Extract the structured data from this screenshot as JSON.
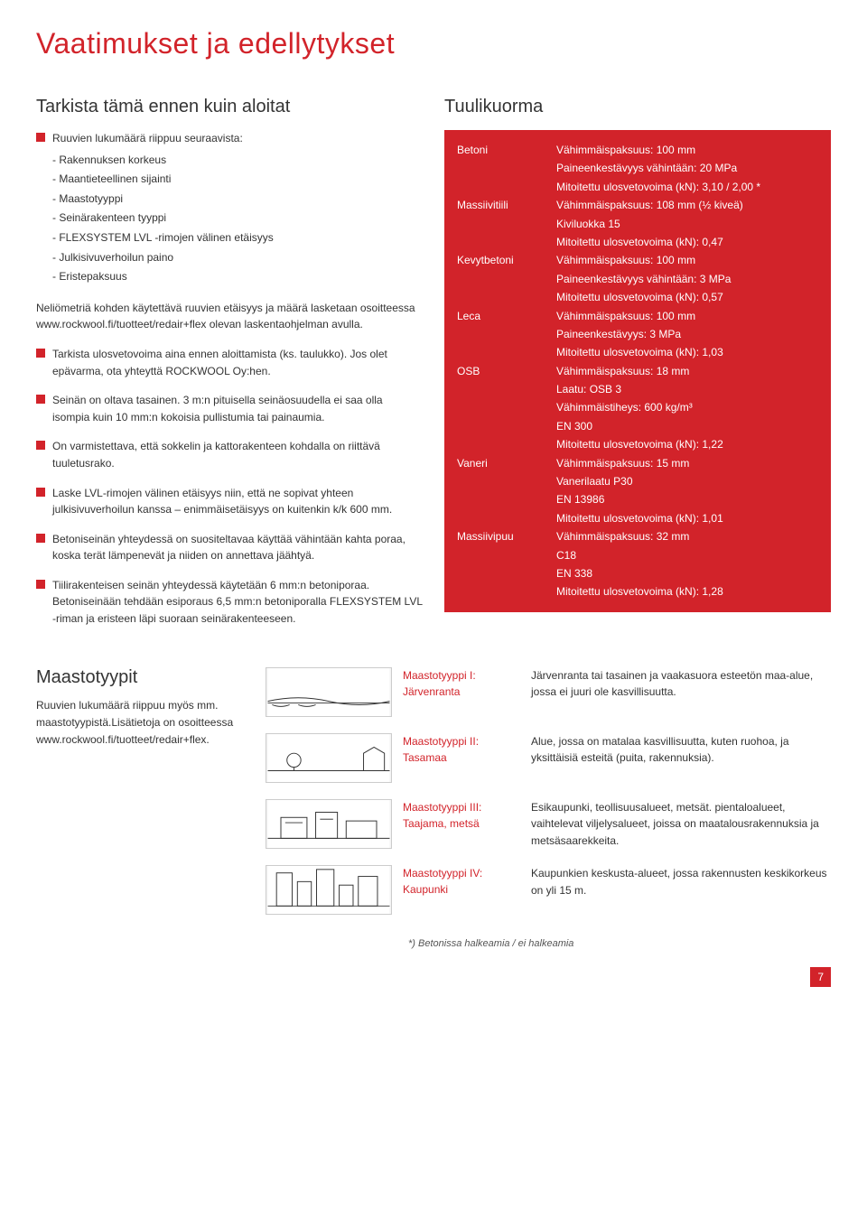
{
  "title": "Vaatimukset ja edellytykset",
  "left": {
    "heading": "Tarkista tämä ennen kuin aloitat",
    "b1_intro": "Ruuvien lukumäärä riippuu seuraavista:",
    "b1_items": [
      "- Rakennuksen korkeus",
      "- Maantieteellinen sijainti",
      "- Maastotyyppi",
      "- Seinärakenteen tyyppi",
      "- FLEXSYSTEM LVL -rimojen välinen etäisyys",
      "- Julkisivuverhoilun paino",
      "- Eristepaksuus"
    ],
    "para1": "Neliömetriä kohden käytettävä ruuvien etäisyys ja määrä lasketaan osoitteessa www.rockwool.fi/tuotteet/redair+flex olevan laskentaohjelman avulla.",
    "b2": "Tarkista ulosvetovoima aina ennen aloittamista (ks. taulukko). Jos olet epävarma, ota yhteyttä ROCKWOOL Oy:hen.",
    "b3": "Seinän on oltava tasainen. 3 m:n pituisella seinäosuudella ei saa olla isompia kuin 10 mm:n kokoisia pullistumia tai painaumia.",
    "b4": "On varmistettava, että sokkelin ja kattorakenteen kohdalla on riittävä tuuletusrako.",
    "b5": "Laske LVL-rimojen välinen etäisyys niin, että ne sopivat yhteen julkisivuverhoilun kanssa – enimmäisetäisyys on kuitenkin k/k 600 mm.",
    "b6": "Betoniseinän yhteydessä on suositeltavaa käyttää vähintään kahta poraa, koska terät lämpenevät ja niiden on annettava jäähtyä.",
    "b7": "Tiilirakenteisen seinän yhteydessä käytetään 6 mm:n betoniporaa. Betoniseinään tehdään esiporaus 6,5 mm:n betoniporalla FLEXSYSTEM LVL -riman ja eristeen läpi suoraan seinärakenteeseen."
  },
  "wind": {
    "heading": "Tuulikuorma",
    "rows": [
      {
        "lbl": "Betoni",
        "vals": [
          "Vähimmäispaksuus: 100 mm",
          "Paineenkestävyys vähintään: 20 MPa",
          "Mitoitettu ulosvetovoima (kN): 3,10 / 2,00 *"
        ]
      },
      {
        "lbl": "Massiivitiili",
        "vals": [
          "Vähimmäispaksuus: 108 mm (½ kiveä)",
          "Kiviluokka 15",
          "Mitoitettu ulosvetovoima (kN): 0,47"
        ]
      },
      {
        "lbl": "Kevytbetoni",
        "vals": [
          "Vähimmäispaksuus: 100 mm",
          "Paineenkestävyys vähintään: 3 MPa",
          "Mitoitettu ulosvetovoima (kN): 0,57"
        ]
      },
      {
        "lbl": "Leca",
        "vals": [
          "Vähimmäispaksuus: 100 mm",
          "Paineenkestävyys: 3 MPa",
          "Mitoitettu ulosvetovoima (kN): 1,03"
        ]
      },
      {
        "lbl": "OSB",
        "vals": [
          "Vähimmäispaksuus: 18 mm",
          "Laatu: OSB 3",
          "Vähimmäistiheys: 600 kg/m³",
          "EN 300",
          "Mitoitettu ulosvetovoima (kN): 1,22"
        ]
      },
      {
        "lbl": "Vaneri",
        "vals": [
          "Vähimmäispaksuus: 15 mm",
          "Vanerilaatu P30",
          "EN 13986",
          "Mitoitettu ulosvetovoima (kN): 1,01"
        ]
      },
      {
        "lbl": "Massiivipuu",
        "vals": [
          "Vähimmäispaksuus: 32 mm",
          "C18",
          "EN 338",
          "Mitoitettu ulosvetovoima (kN): 1,28"
        ]
      }
    ]
  },
  "terrain": {
    "heading": "Maastotyypit",
    "intro": "Ruuvien lukumäärä riippuu myös mm. maastotyypistä.Lisätietoja on osoitteessa www.rockwool.fi/tuotteet/redair+flex.",
    "rows": [
      {
        "lbl": "Maastotyyppi I:\nJärvenranta",
        "desc": "Järvenranta tai tasainen ja vaakasuora esteetön maa-alue, jossa ei juuri ole kasvillisuutta."
      },
      {
        "lbl": "Maastotyyppi II:\nTasamaa",
        "desc": "Alue, jossa on matalaa kasvillisuutta, kuten ruohoa, ja yksittäisiä esteitä (puita, rakennuksia)."
      },
      {
        "lbl": "Maastotyyppi III:\nTaajama, metsä",
        "desc": "Esikaupunki, teollisuusalueet, metsät. pientaloalueet, vaihtelevat viljelysalueet, joissa on maatalousrakennuksia ja metsäsaarekkeita."
      },
      {
        "lbl": "Maastotyyppi IV:\nKaupunki",
        "desc": "Kaupunkien keskusta-alueet, jossa rakennusten keskikorkeus on yli 15 m."
      }
    ]
  },
  "footnote": "*) Betonissa halkeamia / ei halkeamia",
  "pagenum": "7",
  "colors": {
    "red": "#d2232a",
    "text": "#333333",
    "bg": "#ffffff"
  }
}
